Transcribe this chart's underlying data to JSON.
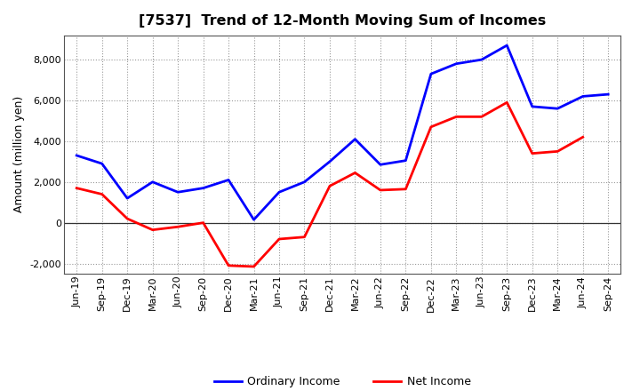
{
  "title": "[7537]  Trend of 12-Month Moving Sum of Incomes",
  "ylabel": "Amount (million yen)",
  "x_labels": [
    "Jun-19",
    "Sep-19",
    "Dec-19",
    "Mar-20",
    "Jun-20",
    "Sep-20",
    "Dec-20",
    "Mar-21",
    "Jun-21",
    "Sep-21",
    "Dec-21",
    "Mar-22",
    "Jun-22",
    "Sep-22",
    "Dec-22",
    "Mar-23",
    "Jun-23",
    "Sep-23",
    "Dec-23",
    "Mar-24",
    "Jun-24",
    "Sep-24"
  ],
  "ordinary_income": [
    3300,
    2900,
    1200,
    2000,
    1500,
    1700,
    2100,
    150,
    1500,
    2000,
    3000,
    4100,
    2850,
    3050,
    7300,
    7800,
    8000,
    8700,
    5700,
    5600,
    6200,
    6300
  ],
  "net_income": [
    1700,
    1400,
    200,
    -350,
    -200,
    0,
    -2100,
    -2150,
    -800,
    -700,
    1800,
    2450,
    1600,
    1650,
    4700,
    5200,
    5200,
    5900,
    3400,
    3500,
    4200,
    null
  ],
  "ordinary_color": "#0000ff",
  "net_color": "#ff0000",
  "line_width": 2.0,
  "ylim": [
    -2500,
    9200
  ],
  "yticks": [
    -2000,
    0,
    2000,
    4000,
    6000,
    8000
  ],
  "grid_color": "#999999",
  "bg_color": "#ffffff",
  "title_fontsize": 11.5,
  "label_fontsize": 9,
  "tick_fontsize": 8,
  "legend_fontsize": 9
}
